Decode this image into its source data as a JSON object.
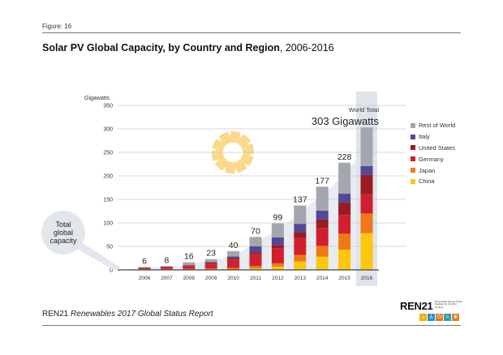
{
  "figure_label": "Figure: 16",
  "title": {
    "bold": "Solar PV Global Capacity, by Country and Region",
    "normal": ", 2006-2016"
  },
  "footer": {
    "org": "REN21",
    "report": "Renewables 2017 Global Status Report"
  },
  "logo": {
    "text_a": "REN",
    "text_b": "21",
    "tagline": "Renewable Energy Policy Network for the 21st Century",
    "tiles": [
      {
        "icon": "sun-icon",
        "glyph": "☼",
        "color": "#f2b200"
      },
      {
        "icon": "wind-turbine-icon",
        "glyph": "⅄",
        "color": "#2a8fcf"
      },
      {
        "icon": "power-icon",
        "glyph": "⏻",
        "color": "#e87a1c"
      },
      {
        "icon": "water-wave-icon",
        "glyph": "≈",
        "color": "#2b9fb3"
      },
      {
        "icon": "leaf-icon",
        "glyph": "❦",
        "color": "#e0812a"
      }
    ]
  },
  "chart_data": {
    "type": "bar",
    "stacked": true,
    "title": "Solar PV Global Capacity, by Country and Region, 2006-2016",
    "ylabel": "Gigawatts",
    "xlabel": "",
    "ylim": [
      0,
      350
    ],
    "yticks": [
      0,
      50,
      100,
      150,
      200,
      250,
      300,
      350
    ],
    "grid": true,
    "legend_position": "right",
    "categories": [
      "2006",
      "2007",
      "2008",
      "2009",
      "2010",
      "2011",
      "2012",
      "2013",
      "2014",
      "2015",
      "2016"
    ],
    "series": [
      {
        "name": "China",
        "color": "#fdc70f",
        "values": [
          0.1,
          0.1,
          0.1,
          0.3,
          0.8,
          3.3,
          7,
          18,
          28,
          43,
          78
        ]
      },
      {
        "name": "Japan",
        "color": "#ee7a17",
        "values": [
          1.7,
          1.9,
          2.1,
          2.6,
          3.6,
          4.9,
          7,
          14,
          23,
          34,
          42
        ]
      },
      {
        "name": "Germany",
        "color": "#d0202e",
        "values": [
          2.9,
          4.2,
          6.1,
          10.6,
          17.6,
          25,
          32,
          36,
          38,
          40,
          41
        ]
      },
      {
        "name": "United States",
        "color": "#9a1b20",
        "values": [
          0.6,
          0.8,
          1.2,
          2,
          2.9,
          4,
          7,
          12,
          18,
          26,
          41
        ]
      },
      {
        "name": "Italy",
        "color": "#54479a",
        "values": [
          0.1,
          0.1,
          0.5,
          1.2,
          3.5,
          12.8,
          16,
          18,
          19,
          19,
          19
        ]
      },
      {
        "name": "Rest of World",
        "color": "#a3a6ae",
        "values": [
          0.6,
          0.9,
          6,
          6.3,
          11.6,
          20,
          30,
          39,
          51,
          66,
          82
        ]
      }
    ],
    "totals": [
      6,
      8,
      16,
      23,
      40,
      70,
      99,
      137,
      177,
      228,
      303
    ],
    "total_labels": [
      "6",
      "8",
      "16",
      "23",
      "40",
      "70",
      "99",
      "137",
      "177",
      "228",
      "303"
    ],
    "highlight_category": "2016",
    "annotations": {
      "world_total_label": "World Total",
      "world_total_value": "303 Gigawatts",
      "callout": "Total global capacity",
      "callout_lines": [
        "Total",
        "global",
        "capacity"
      ]
    }
  }
}
